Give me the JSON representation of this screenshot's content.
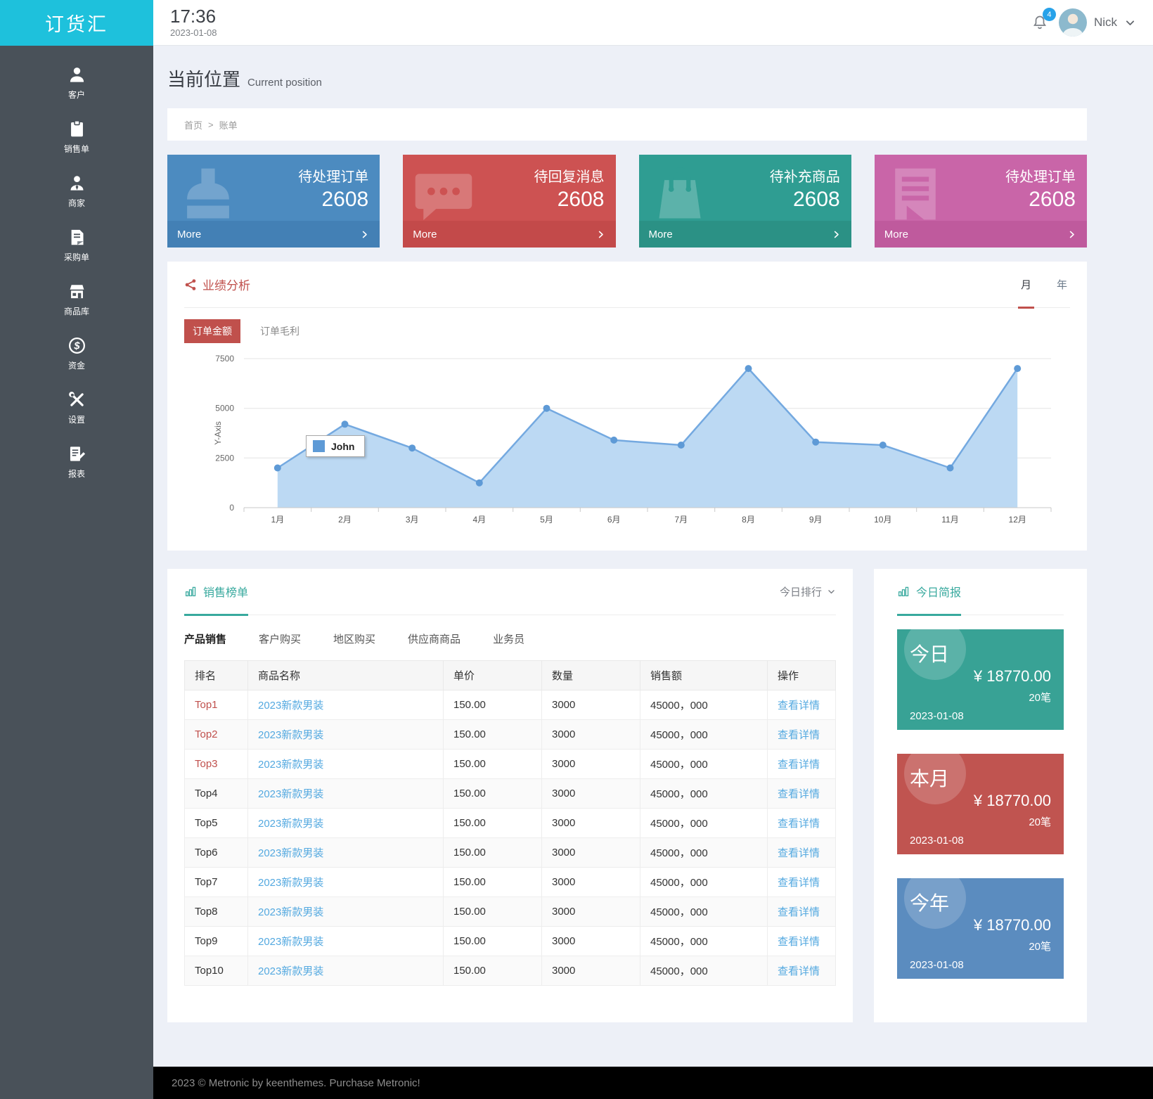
{
  "app": {
    "logo": "订货汇",
    "footer": "2023 © Metronic by keenthemes. Purchase Metronic!"
  },
  "header": {
    "time": "17:36",
    "date": "2023-01-08",
    "notification_count": "4",
    "user_name": "Nick"
  },
  "sidebar": {
    "items": [
      {
        "label": "客户",
        "icon": "user"
      },
      {
        "label": "销售单",
        "icon": "clipboard"
      },
      {
        "label": "商家",
        "icon": "merchant"
      },
      {
        "label": "采购单",
        "icon": "docfile"
      },
      {
        "label": "商品库",
        "icon": "store"
      },
      {
        "label": "资金",
        "icon": "dollar"
      },
      {
        "label": "设置",
        "icon": "tools"
      },
      {
        "label": "报表",
        "icon": "report"
      }
    ]
  },
  "page": {
    "title": "当前位置",
    "subtitle": "Current position",
    "breadcrumb": [
      "首页",
      "账单"
    ],
    "breadcrumb_separator": ">"
  },
  "stat_cards": [
    {
      "title": "待处理订单",
      "value": "2608",
      "more_label": "More",
      "icon": "stamp",
      "color": "#4c8bc0",
      "footer_color": "#4380b5"
    },
    {
      "title": "待回复消息",
      "value": "2608",
      "more_label": "More",
      "icon": "bubble",
      "color": "#cd5252",
      "footer_color": "#c34a4a"
    },
    {
      "title": "待补充商品",
      "value": "2608",
      "more_label": "More",
      "icon": "bag",
      "color": "#2f9d92",
      "footer_color": "#2b9185"
    },
    {
      "title": "待处理订单",
      "value": "2608",
      "more_label": "More",
      "icon": "doclines",
      "color": "#c965a8",
      "footer_color": "#bf5a9d"
    }
  ],
  "performance": {
    "title": "业绩分析",
    "period_tabs": [
      {
        "label": "月",
        "active": true
      },
      {
        "label": "年"
      }
    ],
    "series_tabs": [
      {
        "label": "订单金额",
        "active": true
      },
      {
        "label": "订单毛利"
      }
    ]
  },
  "chart_data": {
    "type": "area",
    "title": "业绩分析 - 订单金额 (月)",
    "x": [
      "1月",
      "2月",
      "3月",
      "4月",
      "5月",
      "6月",
      "7月",
      "8月",
      "9月",
      "10月",
      "11月",
      "12月"
    ],
    "series": [
      {
        "name": "John",
        "values": [
          2000,
          4200,
          3000,
          1250,
          5000,
          3400,
          3150,
          7000,
          3300,
          3150,
          2000,
          7000
        ]
      }
    ],
    "xlabel": "",
    "ylabel": "Y-Axis",
    "ylim": [
      0,
      7500
    ],
    "yticks": [
      0,
      2500,
      5000,
      7500
    ],
    "grid": true,
    "legend_position": "inside-left",
    "colors": {
      "line": "#74a9e0",
      "fill": "#bcd9f3",
      "dot": "#5e9ad6"
    }
  },
  "sales": {
    "title": "销售榜单",
    "rank_filter": "今日排行",
    "tabs": [
      {
        "label": "产品销售",
        "active": true
      },
      {
        "label": "客户购买"
      },
      {
        "label": "地区购买"
      },
      {
        "label": "供应商商品"
      },
      {
        "label": "业务员"
      }
    ],
    "table": {
      "headers": [
        "排名",
        "商品名称",
        "单价",
        "数量",
        "销售额",
        "操作"
      ],
      "rows": [
        {
          "rank": "Top1",
          "name": "2023新款男装",
          "price": "150.00",
          "qty": "3000",
          "amount": "45000，000",
          "action": "查看详情"
        },
        {
          "rank": "Top2",
          "name": "2023新款男装",
          "price": "150.00",
          "qty": "3000",
          "amount": "45000，000",
          "action": "查看详情"
        },
        {
          "rank": "Top3",
          "name": "2023新款男装",
          "price": "150.00",
          "qty": "3000",
          "amount": "45000，000",
          "action": "查看详情"
        },
        {
          "rank": "Top4",
          "name": "2023新款男装",
          "price": "150.00",
          "qty": "3000",
          "amount": "45000，000",
          "action": "查看详情"
        },
        {
          "rank": "Top5",
          "name": "2023新款男装",
          "price": "150.00",
          "qty": "3000",
          "amount": "45000，000",
          "action": "查看详情"
        },
        {
          "rank": "Top6",
          "name": "2023新款男装",
          "price": "150.00",
          "qty": "3000",
          "amount": "45000，000",
          "action": "查看详情"
        },
        {
          "rank": "Top7",
          "name": "2023新款男装",
          "price": "150.00",
          "qty": "3000",
          "amount": "45000，000",
          "action": "查看详情"
        },
        {
          "rank": "Top8",
          "name": "2023新款男装",
          "price": "150.00",
          "qty": "3000",
          "amount": "45000，000",
          "action": "查看详情"
        },
        {
          "rank": "Top9",
          "name": "2023新款男装",
          "price": "150.00",
          "qty": "3000",
          "amount": "45000，000",
          "action": "查看详情"
        },
        {
          "rank": "Top10",
          "name": "2023新款男装",
          "price": "150.00",
          "qty": "3000",
          "amount": "45000，000",
          "action": "查看详情"
        }
      ]
    }
  },
  "briefing": {
    "title": "今日简报",
    "cards": [
      {
        "label": "今日",
        "amount": "¥ 18770.00",
        "count": "20笔",
        "date": "2023-01-08",
        "color": "#38a295"
      },
      {
        "label": "本月",
        "amount": "¥ 18770.00",
        "count": "20笔",
        "date": "2023-01-08",
        "color": "#c05450"
      },
      {
        "label": "今年",
        "amount": "¥ 18770.00",
        "count": "20笔",
        "date": "2023-01-08",
        "color": "#5b8cbf"
      }
    ]
  }
}
